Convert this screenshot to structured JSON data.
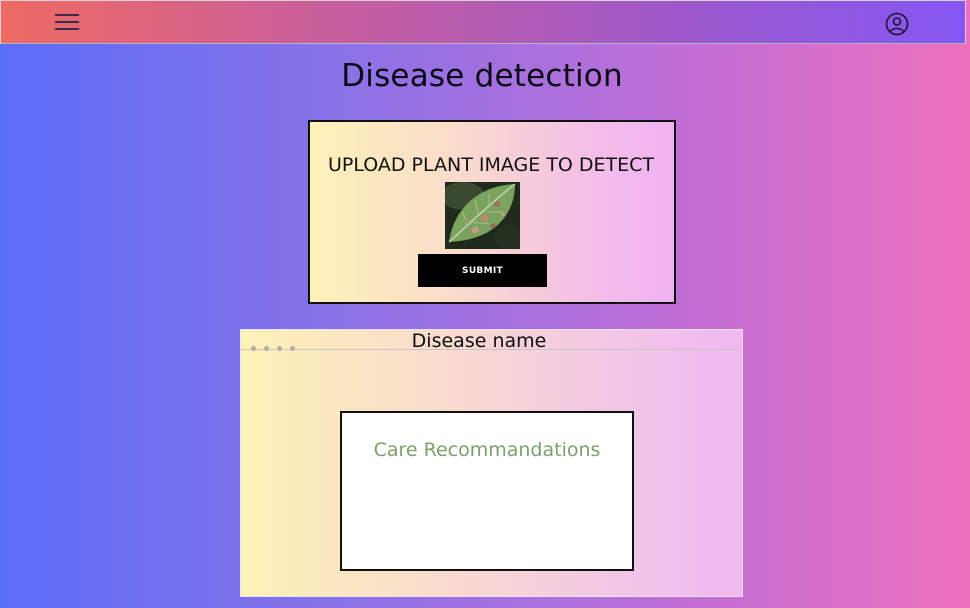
{
  "header": {
    "menu_icon": "hamburger-menu-icon",
    "profile_icon": "user-profile-icon"
  },
  "page": {
    "title": "Disease detection"
  },
  "upload": {
    "label": "UPLOAD PLANT IMAGE TO DETECT",
    "image": "leaf-image",
    "submit_label": "SUBMIT"
  },
  "result": {
    "disease_name": "Disease name",
    "care_title": "Care Recommandations"
  },
  "colors": {
    "submit_bg": "#000000",
    "care_title": "#7ea06a"
  }
}
